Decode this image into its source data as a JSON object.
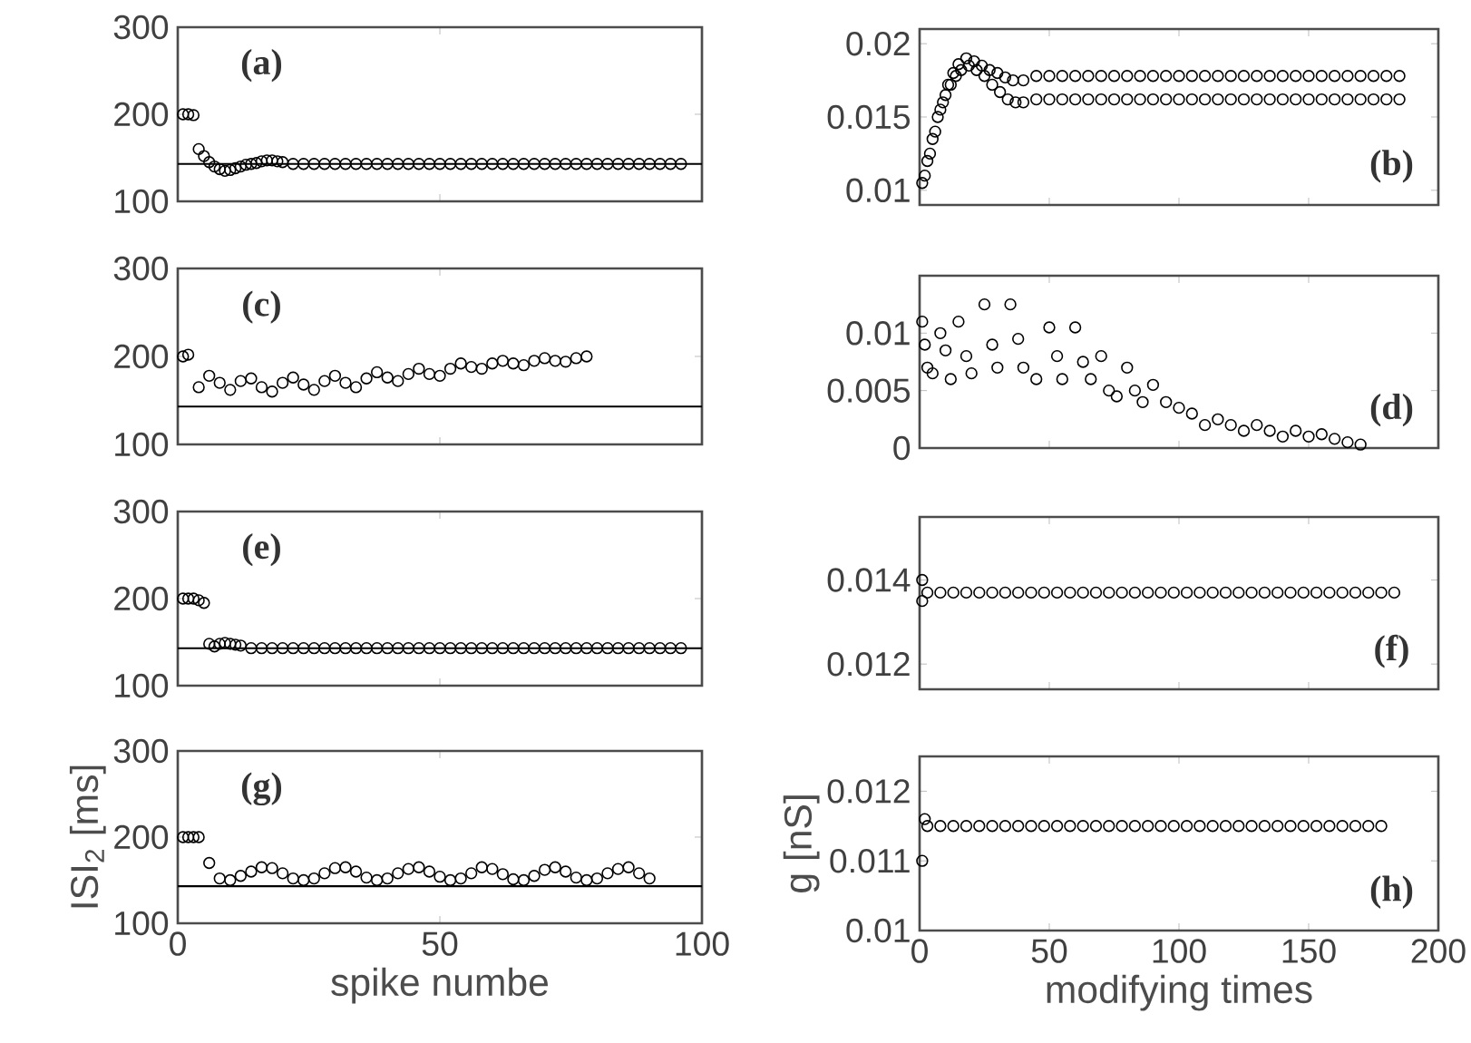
{
  "chart_data": [
    {
      "type": "scatter",
      "marker": "circle",
      "xlim": [
        0,
        100
      ],
      "xticks": [
        0,
        50,
        100
      ],
      "ylim": [
        100,
        300
      ],
      "yticks": [
        100,
        200,
        300
      ],
      "tick_labels": "y",
      "annotations": [
        "(a)"
      ],
      "ref_lines": [
        {
          "axis": "y",
          "value": 143,
          "color": "#000000"
        }
      ],
      "series": [
        {
          "color": "#000000",
          "x": [
            1,
            2,
            3,
            4,
            5,
            6,
            7,
            8,
            9,
            10,
            11,
            12,
            13,
            14,
            15,
            16,
            17,
            18,
            19,
            20,
            22,
            24,
            26,
            28,
            30,
            32,
            34,
            36,
            38,
            40,
            42,
            44,
            46,
            48,
            50,
            52,
            54,
            56,
            58,
            60,
            62,
            64,
            66,
            68,
            70,
            72,
            74,
            76,
            78,
            80,
            82,
            84,
            86,
            88,
            90,
            92,
            94,
            96
          ],
          "values": [
            200,
            200,
            199,
            160,
            152,
            145,
            140,
            137,
            135,
            136,
            138,
            140,
            142,
            143,
            144,
            146,
            147,
            147,
            146,
            145,
            143,
            143,
            143,
            143,
            143,
            143,
            143,
            143,
            143,
            143,
            143,
            143,
            143,
            143,
            143,
            143,
            143,
            143,
            143,
            143,
            143,
            143,
            143,
            143,
            143,
            143,
            143,
            143,
            143,
            143,
            143,
            143,
            143,
            143,
            143,
            143,
            143,
            143
          ]
        }
      ]
    },
    {
      "type": "scatter",
      "marker": "circle",
      "xlim": [
        0,
        200
      ],
      "xticks": [
        0,
        50,
        100,
        150,
        200
      ],
      "ylim": [
        0.009,
        0.021
      ],
      "yticks": [
        0.01,
        0.015,
        0.02
      ],
      "tick_labels": "y",
      "annotations": [
        "(b)"
      ],
      "series": [
        {
          "color": "#000000",
          "x": [
            1,
            3,
            5,
            7,
            9,
            11,
            13,
            15,
            18,
            21,
            24,
            27,
            30,
            33,
            36,
            40,
            45,
            50,
            55,
            60,
            65,
            70,
            75,
            80,
            85,
            90,
            95,
            100,
            105,
            110,
            115,
            120,
            125,
            130,
            135,
            140,
            145,
            150,
            155,
            160,
            165,
            170,
            175,
            180,
            185
          ],
          "values": [
            0.0105,
            0.012,
            0.0135,
            0.015,
            0.016,
            0.0172,
            0.018,
            0.0186,
            0.019,
            0.0188,
            0.0185,
            0.0182,
            0.018,
            0.0177,
            0.0175,
            0.0175,
            0.0178,
            0.0178,
            0.0178,
            0.0178,
            0.0178,
            0.0178,
            0.0178,
            0.0178,
            0.0178,
            0.0178,
            0.0178,
            0.0178,
            0.0178,
            0.0178,
            0.0178,
            0.0178,
            0.0178,
            0.0178,
            0.0178,
            0.0178,
            0.0178,
            0.0178,
            0.0178,
            0.0178,
            0.0178,
            0.0178,
            0.0178,
            0.0178,
            0.0178
          ]
        },
        {
          "color": "#000000",
          "x": [
            2,
            4,
            6,
            8,
            10,
            12,
            14,
            16,
            19,
            22,
            25,
            28,
            31,
            34,
            37,
            40,
            45,
            50,
            55,
            60,
            65,
            70,
            75,
            80,
            85,
            90,
            95,
            100,
            105,
            110,
            115,
            120,
            125,
            130,
            135,
            140,
            145,
            150,
            155,
            160,
            165,
            170,
            175,
            180,
            185
          ],
          "values": [
            0.011,
            0.0125,
            0.014,
            0.0155,
            0.0165,
            0.0172,
            0.0178,
            0.0182,
            0.0185,
            0.0182,
            0.0178,
            0.0172,
            0.0167,
            0.0162,
            0.016,
            0.016,
            0.0162,
            0.0162,
            0.0162,
            0.0162,
            0.0162,
            0.0162,
            0.0162,
            0.0162,
            0.0162,
            0.0162,
            0.0162,
            0.0162,
            0.0162,
            0.0162,
            0.0162,
            0.0162,
            0.0162,
            0.0162,
            0.0162,
            0.0162,
            0.0162,
            0.0162,
            0.0162,
            0.0162,
            0.0162,
            0.0162,
            0.0162,
            0.0162,
            0.0162
          ]
        }
      ]
    },
    {
      "type": "scatter",
      "marker": "circle",
      "xlim": [
        0,
        100
      ],
      "xticks": [
        0,
        50,
        100
      ],
      "ylim": [
        100,
        300
      ],
      "yticks": [
        100,
        200,
        300
      ],
      "tick_labels": "y",
      "annotations": [
        "(c)"
      ],
      "ref_lines": [
        {
          "axis": "y",
          "value": 143,
          "color": "#000000"
        }
      ],
      "series": [
        {
          "color": "#000000",
          "x": [
            1,
            2,
            4,
            6,
            8,
            10,
            12,
            14,
            16,
            18,
            20,
            22,
            24,
            26,
            28,
            30,
            32,
            34,
            36,
            38,
            40,
            42,
            44,
            46,
            48,
            50,
            52,
            54,
            56,
            58,
            60,
            62,
            64,
            66,
            68,
            70,
            72,
            74,
            76,
            78
          ],
          "values": [
            200,
            202,
            165,
            178,
            170,
            162,
            172,
            175,
            165,
            160,
            170,
            176,
            168,
            162,
            172,
            178,
            170,
            165,
            175,
            182,
            176,
            172,
            180,
            186,
            180,
            178,
            186,
            192,
            188,
            186,
            192,
            195,
            192,
            190,
            195,
            198,
            195,
            194,
            198,
            200
          ]
        }
      ]
    },
    {
      "type": "scatter",
      "marker": "circle",
      "xlim": [
        0,
        200
      ],
      "xticks": [
        0,
        50,
        100,
        150,
        200
      ],
      "ylim": [
        0,
        0.015
      ],
      "yticks": [
        0,
        0.005,
        0.01
      ],
      "tick_labels": "y",
      "annotations": [
        "(d)"
      ],
      "series": [
        {
          "color": "#000000",
          "x": [
            1,
            2,
            3,
            5,
            8,
            10,
            12,
            15,
            18,
            20,
            25,
            28,
            30,
            35,
            38,
            40,
            45,
            50,
            53,
            55,
            60,
            63,
            66,
            70,
            73,
            76,
            80,
            83,
            86,
            90,
            95,
            100,
            105,
            110,
            115,
            120,
            125,
            130,
            135,
            140,
            145,
            150,
            155,
            160,
            165,
            170
          ],
          "values": [
            0.011,
            0.009,
            0.007,
            0.0065,
            0.01,
            0.0085,
            0.006,
            0.011,
            0.008,
            0.0065,
            0.0125,
            0.009,
            0.007,
            0.0125,
            0.0095,
            0.007,
            0.006,
            0.0105,
            0.008,
            0.006,
            0.0105,
            0.0075,
            0.006,
            0.008,
            0.005,
            0.0045,
            0.007,
            0.005,
            0.004,
            0.0055,
            0.004,
            0.0035,
            0.003,
            0.002,
            0.0025,
            0.002,
            0.0015,
            0.002,
            0.0015,
            0.001,
            0.0015,
            0.001,
            0.0012,
            0.0008,
            0.0005,
            0.0003
          ]
        }
      ]
    },
    {
      "type": "scatter",
      "marker": "circle",
      "xlim": [
        0,
        100
      ],
      "xticks": [
        0,
        50,
        100
      ],
      "ylim": [
        100,
        300
      ],
      "yticks": [
        100,
        200,
        300
      ],
      "tick_labels": "y",
      "annotations": [
        "(e)"
      ],
      "ref_lines": [
        {
          "axis": "y",
          "value": 143,
          "color": "#000000"
        }
      ],
      "series": [
        {
          "color": "#000000",
          "x": [
            1,
            2,
            3,
            4,
            5,
            6,
            7,
            8,
            9,
            10,
            11,
            12,
            14,
            16,
            18,
            20,
            22,
            24,
            26,
            28,
            30,
            32,
            34,
            36,
            38,
            40,
            42,
            44,
            46,
            48,
            50,
            52,
            54,
            56,
            58,
            60,
            62,
            64,
            66,
            68,
            70,
            72,
            74,
            76,
            78,
            80,
            82,
            84,
            86,
            88,
            90,
            92,
            94,
            96
          ],
          "values": [
            200,
            200,
            200,
            198,
            195,
            148,
            145,
            148,
            149,
            148,
            147,
            146,
            143,
            143,
            143,
            143,
            143,
            143,
            143,
            143,
            143,
            143,
            143,
            143,
            143,
            143,
            143,
            143,
            143,
            143,
            143,
            143,
            143,
            143,
            143,
            143,
            143,
            143,
            143,
            143,
            143,
            143,
            143,
            143,
            143,
            143,
            143,
            143,
            143,
            143,
            143,
            143,
            143,
            143
          ]
        }
      ]
    },
    {
      "type": "scatter",
      "marker": "circle",
      "xlim": [
        0,
        200
      ],
      "xticks": [
        0,
        50,
        100,
        150,
        200
      ],
      "ylim": [
        0.0114,
        0.0155
      ],
      "yticks": [
        0.012,
        0.014
      ],
      "tick_labels": "y",
      "annotations": [
        "(f)"
      ],
      "series": [
        {
          "color": "#000000",
          "x": [
            1,
            1,
            3,
            8,
            13,
            18,
            23,
            28,
            33,
            38,
            43,
            48,
            53,
            58,
            63,
            68,
            73,
            78,
            83,
            88,
            93,
            98,
            103,
            108,
            113,
            118,
            123,
            128,
            133,
            138,
            143,
            148,
            153,
            158,
            163,
            168,
            173,
            178,
            183
          ],
          "values": [
            0.014,
            0.0135,
            0.0137,
            0.0137,
            0.0137,
            0.0137,
            0.0137,
            0.0137,
            0.0137,
            0.0137,
            0.0137,
            0.0137,
            0.0137,
            0.0137,
            0.0137,
            0.0137,
            0.0137,
            0.0137,
            0.0137,
            0.0137,
            0.0137,
            0.0137,
            0.0137,
            0.0137,
            0.0137,
            0.0137,
            0.0137,
            0.0137,
            0.0137,
            0.0137,
            0.0137,
            0.0137,
            0.0137,
            0.0137,
            0.0137,
            0.0137,
            0.0137,
            0.0137,
            0.0137
          ]
        }
      ]
    },
    {
      "type": "scatter",
      "marker": "circle",
      "xlim": [
        0,
        100
      ],
      "xticks": [
        0,
        50,
        100
      ],
      "ylim": [
        100,
        300
      ],
      "yticks": [
        100,
        200,
        300
      ],
      "xlabel": "spike numbe",
      "ylabel": "ISI$_{2}$ [ms]",
      "annotations": [
        "(g)"
      ],
      "ref_lines": [
        {
          "axis": "y",
          "value": 143,
          "color": "#000000"
        }
      ],
      "series": [
        {
          "color": "#000000",
          "x": [
            1,
            2,
            3,
            4,
            6,
            8,
            10,
            12,
            14,
            16,
            18,
            20,
            22,
            24,
            26,
            28,
            30,
            32,
            34,
            36,
            38,
            40,
            42,
            44,
            46,
            48,
            50,
            52,
            54,
            56,
            58,
            60,
            62,
            64,
            66,
            68,
            70,
            72,
            74,
            76,
            78,
            80,
            82,
            84,
            86,
            88,
            90
          ],
          "values": [
            200,
            200,
            200,
            200,
            170,
            152,
            150,
            155,
            160,
            165,
            164,
            158,
            152,
            150,
            152,
            158,
            164,
            165,
            160,
            153,
            150,
            152,
            158,
            163,
            165,
            160,
            154,
            150,
            152,
            158,
            165,
            163,
            157,
            151,
            150,
            155,
            162,
            165,
            160,
            153,
            150,
            152,
            158,
            163,
            165,
            158,
            152
          ]
        }
      ]
    },
    {
      "type": "scatter",
      "marker": "circle",
      "xlim": [
        0,
        200
      ],
      "xticks": [
        0,
        50,
        100,
        150,
        200
      ],
      "ylim": [
        0.01,
        0.0125
      ],
      "yticks": [
        0.01,
        0.011,
        0.012
      ],
      "xlabel": "modifying times",
      "ylabel": "g [nS]",
      "annotations": [
        "(h)"
      ],
      "series": [
        {
          "color": "#000000",
          "x": [
            1,
            2,
            3,
            8,
            13,
            18,
            23,
            28,
            33,
            38,
            43,
            48,
            53,
            58,
            63,
            68,
            73,
            78,
            83,
            88,
            93,
            98,
            103,
            108,
            113,
            118,
            123,
            128,
            133,
            138,
            143,
            148,
            153,
            158,
            163,
            168,
            173,
            178
          ],
          "values": [
            0.011,
            0.0116,
            0.0115,
            0.0115,
            0.0115,
            0.0115,
            0.0115,
            0.0115,
            0.0115,
            0.0115,
            0.0115,
            0.0115,
            0.0115,
            0.0115,
            0.0115,
            0.0115,
            0.0115,
            0.0115,
            0.0115,
            0.0115,
            0.0115,
            0.0115,
            0.0115,
            0.0115,
            0.0115,
            0.0115,
            0.0115,
            0.0115,
            0.0115,
            0.0115,
            0.0115,
            0.0115,
            0.0115,
            0.0115,
            0.0115,
            0.0115,
            0.0115,
            0.0115
          ]
        }
      ]
    }
  ]
}
